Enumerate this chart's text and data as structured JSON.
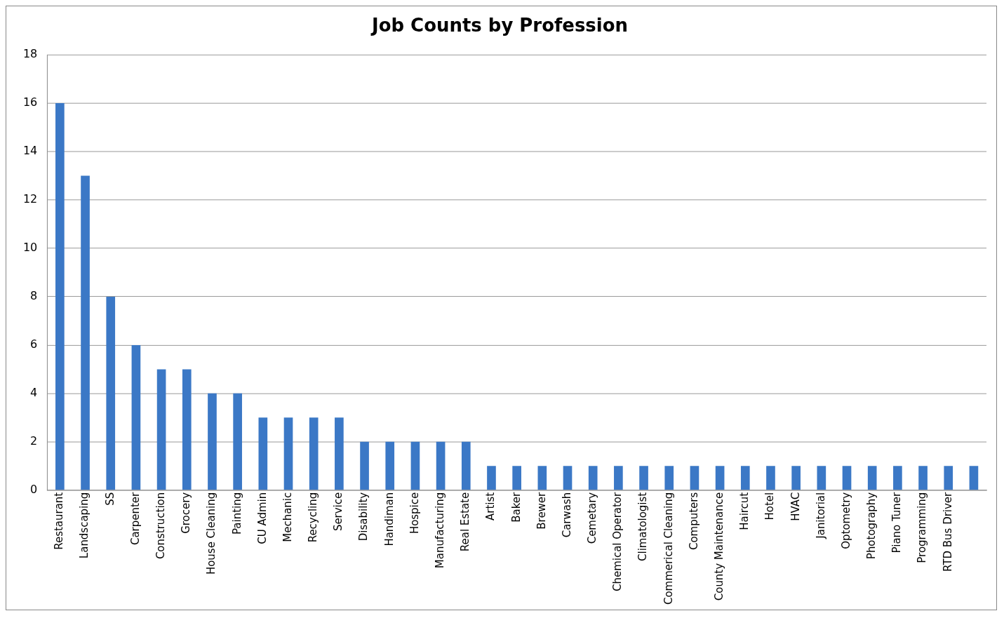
{
  "chart_data": {
    "type": "bar",
    "title": "Job Counts by Profession",
    "categories": [
      "Restaurant",
      "Landscaping",
      "SS",
      "Carpenter",
      "Construction",
      "Grocery",
      "House Cleaning",
      "Painting",
      "CU Admin",
      "Mechanic",
      "Recycling",
      "Service",
      "Disability",
      "Handiman",
      "Hospice",
      "Manufacturing",
      "Real Estate",
      "Artist",
      "Baker",
      "Brewer",
      "Carwash",
      "Cemetary",
      "Chemical Operator",
      "Climatologist",
      "Commerical Cleaning",
      "Computers",
      "County Maintenance",
      "Haircut",
      "Hotel",
      "HVAC",
      "Janitorial",
      "Optometry",
      "Photography",
      "Piano Tuner",
      "Programming",
      "RTD Bus Driver",
      null
    ],
    "values": [
      16,
      13,
      8,
      6,
      5,
      5,
      4,
      4,
      3,
      3,
      3,
      3,
      2,
      2,
      2,
      2,
      2,
      1,
      1,
      1,
      1,
      1,
      1,
      1,
      1,
      1,
      1,
      1,
      1,
      1,
      1,
      1,
      1,
      1,
      1,
      1,
      1
    ],
    "color": "#3b78c6",
    "ylim": [
      0,
      18
    ],
    "yticks": [
      0,
      2,
      4,
      6,
      8,
      10,
      12,
      14,
      16,
      18
    ],
    "grid": "y",
    "legend": false
  }
}
